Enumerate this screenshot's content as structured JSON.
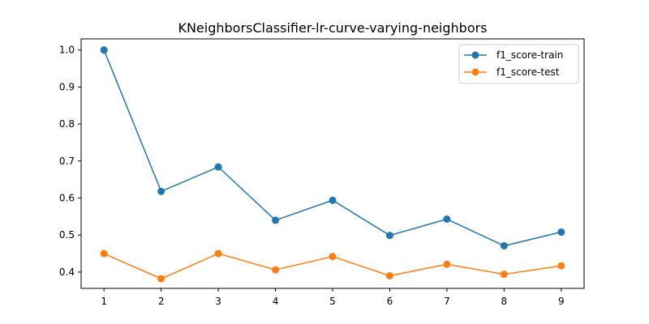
{
  "chart_data": {
    "type": "line",
    "title": "KNeighborsClassifier-lr-curve-varying-neighbors",
    "xlabel": "",
    "ylabel": "",
    "x": [
      1,
      2,
      3,
      4,
      5,
      6,
      7,
      8,
      9
    ],
    "xlim": [
      0.6,
      9.4
    ],
    "ylim": [
      0.356,
      1.03
    ],
    "xticks": [
      1,
      2,
      3,
      4,
      5,
      6,
      7,
      8,
      9
    ],
    "yticks": [
      0.4,
      0.5,
      0.6,
      0.7,
      0.8,
      0.9,
      1.0
    ],
    "grid": false,
    "legend_position": "top-right",
    "series": [
      {
        "name": "f1_score-train",
        "color": "#1f77b4",
        "marker": "circle",
        "values": [
          1.0,
          0.618,
          0.684,
          0.54,
          0.594,
          0.499,
          0.543,
          0.471,
          0.508
        ]
      },
      {
        "name": "f1_score-test",
        "color": "#ff7f0e",
        "marker": "circle",
        "values": [
          0.45,
          0.382,
          0.45,
          0.406,
          0.442,
          0.39,
          0.421,
          0.394,
          0.417
        ]
      }
    ]
  }
}
